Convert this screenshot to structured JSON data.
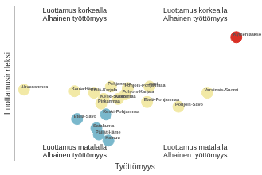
{
  "chart_data": {
    "type": "scatter",
    "x_label": "Työttömyys",
    "y_label": "Luottamusindeksi",
    "xlim": [
      0,
      100
    ],
    "ylim": [
      0,
      100
    ],
    "xticks": [
      50
    ],
    "yticks": [
      50
    ],
    "grid": true,
    "tick_labels": false,
    "annotations": [
      [
        "Luottamus korkealla",
        "Alhainen työttömyys"
      ],
      [
        "Luottamus korkealla",
        "Alhainen työttömyys"
      ],
      [
        "Luottamus matalalla",
        "Alhainen työttömyys"
      ],
      [
        "Luottamus matalalla",
        "Alhainen työttömyys"
      ]
    ],
    "points": [
      {
        "label": "Ahvenanmaa",
        "x": 4,
        "y": 46,
        "color": "#f2e9a6"
      },
      {
        "label": "Kanta-Häme",
        "x": 25,
        "y": 45,
        "color": "#f2e9a6"
      },
      {
        "label": "Etelä-Karjala",
        "x": 33,
        "y": 44,
        "color": "#f2e9a6"
      },
      {
        "label": "Pohjanmaa",
        "x": 40,
        "y": 48,
        "color": "#f2e9a6"
      },
      {
        "label": "Pohjois-Pohjanmaa",
        "x": 47,
        "y": 47,
        "color": "#f2e9a6"
      },
      {
        "label": "Lappi",
        "x": 56,
        "y": 48,
        "color": "#f2e9a6"
      },
      {
        "label": "Pohjois-Karjala",
        "x": 46,
        "y": 43,
        "color": "#f2e9a6"
      },
      {
        "label": "Koko maa",
        "x": 43,
        "y": 40,
        "color": "#f2e9a6"
      },
      {
        "label": "Keski-Suomi",
        "x": 37,
        "y": 40,
        "color": "#f2e9a6"
      },
      {
        "label": "Pirkanmaa",
        "x": 36,
        "y": 37,
        "color": "#f2e9a6"
      },
      {
        "label": "Etelä-Pohjanmaa",
        "x": 55,
        "y": 38,
        "color": "#f2e9a6"
      },
      {
        "label": "Pohjois-Savo",
        "x": 68,
        "y": 35,
        "color": "#f2e9a6"
      },
      {
        "label": "Varsinais-Suomi",
        "x": 80,
        "y": 44,
        "color": "#f2e9a6"
      },
      {
        "label": "Kymenlaakso",
        "x": 92,
        "y": 80,
        "color": "#d93025"
      },
      {
        "label": "Etelä-Savo",
        "x": 26,
        "y": 27,
        "color": "#7ab8cc"
      },
      {
        "label": "Keski-Pohjanmaa",
        "x": 38,
        "y": 30,
        "color": "#7ab8cc"
      },
      {
        "label": "Satakunta",
        "x": 34,
        "y": 21,
        "color": "#7ab8cc"
      },
      {
        "label": "Päijät-Häme",
        "x": 35,
        "y": 17,
        "color": "#7ab8cc"
      },
      {
        "label": "Kainuu",
        "x": 39,
        "y": 13,
        "color": "#7ab8cc"
      }
    ]
  }
}
